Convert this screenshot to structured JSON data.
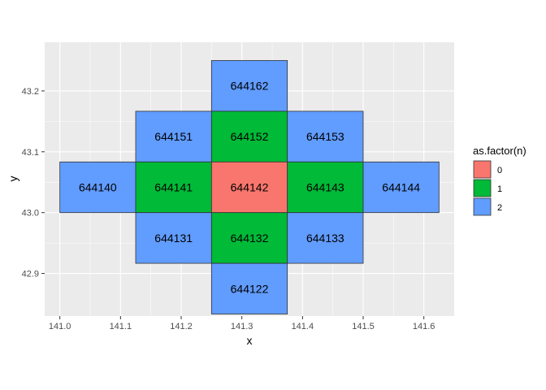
{
  "chart_data": {
    "type": "heatmap",
    "title": "",
    "xlabel": "x",
    "ylabel": "y",
    "xlim": [
      140.975,
      141.65
    ],
    "ylim": [
      42.83,
      43.28
    ],
    "x_ticks": [
      "141.0",
      "141.1",
      "141.2",
      "141.3",
      "141.4",
      "141.5",
      "141.6"
    ],
    "y_ticks": [
      "42.9",
      "43.0",
      "43.1",
      "43.2"
    ],
    "grid": true,
    "legend": {
      "title": "as.factor(n)",
      "position": "right",
      "entries": [
        {
          "label": "0",
          "color": "#F8766D"
        },
        {
          "label": "1",
          "color": "#00BA38"
        },
        {
          "label": "2",
          "color": "#619CFF"
        }
      ]
    },
    "cell_width": 0.125,
    "cell_height": 0.0833,
    "cells": [
      {
        "label": "644162",
        "x0": 141.25,
        "y0": 43.1667,
        "n": 2
      },
      {
        "label": "644151",
        "x0": 141.125,
        "y0": 43.0833,
        "n": 2
      },
      {
        "label": "644152",
        "x0": 141.25,
        "y0": 43.0833,
        "n": 1
      },
      {
        "label": "644153",
        "x0": 141.375,
        "y0": 43.0833,
        "n": 2
      },
      {
        "label": "644140",
        "x0": 141.0,
        "y0": 43.0,
        "n": 2
      },
      {
        "label": "644141",
        "x0": 141.125,
        "y0": 43.0,
        "n": 1
      },
      {
        "label": "644142",
        "x0": 141.25,
        "y0": 43.0,
        "n": 0
      },
      {
        "label": "644143",
        "x0": 141.375,
        "y0": 43.0,
        "n": 1
      },
      {
        "label": "644144",
        "x0": 141.5,
        "y0": 43.0,
        "n": 2
      },
      {
        "label": "644131",
        "x0": 141.125,
        "y0": 42.9167,
        "n": 2
      },
      {
        "label": "644132",
        "x0": 141.25,
        "y0": 42.9167,
        "n": 1
      },
      {
        "label": "644133",
        "x0": 141.375,
        "y0": 42.9167,
        "n": 2
      },
      {
        "label": "644122",
        "x0": 141.25,
        "y0": 42.8333,
        "n": 2
      }
    ],
    "colors": {
      "panel_background": "#EBEBEB",
      "grid_major": "#FFFFFF",
      "cell_border": "#333333"
    }
  }
}
